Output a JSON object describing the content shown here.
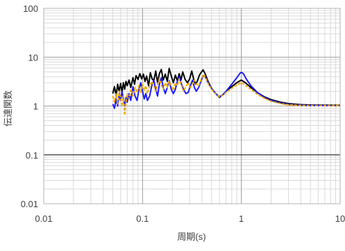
{
  "chart_data": {
    "type": "line",
    "title": "",
    "xlabel": "周期(s)",
    "ylabel": "伝達関数",
    "x_scale": "log",
    "y_scale": "log",
    "xlim": [
      0.01,
      10
    ],
    "ylim": [
      0.01,
      100
    ],
    "x_ticks": [
      {
        "value": 0.01,
        "label": "0.01"
      },
      {
        "value": 0.1,
        "label": "0.1"
      },
      {
        "value": 1,
        "label": "1"
      },
      {
        "value": 10,
        "label": "10"
      }
    ],
    "y_ticks": [
      {
        "value": 0.01,
        "label": "0.01"
      },
      {
        "value": 0.1,
        "label": "0.1"
      },
      {
        "value": 1,
        "label": "1"
      },
      {
        "value": 10,
        "label": "10"
      },
      {
        "value": 100,
        "label": "100"
      }
    ],
    "grid": true,
    "legend": false,
    "series": [
      {
        "color": "#000000",
        "style": "solid",
        "points": [
          [
            0.05,
            1.8
          ],
          [
            0.052,
            2.5
          ],
          [
            0.054,
            1.6
          ],
          [
            0.056,
            2.8
          ],
          [
            0.058,
            2.0
          ],
          [
            0.06,
            2.9
          ],
          [
            0.062,
            1.9
          ],
          [
            0.064,
            3.0
          ],
          [
            0.066,
            2.2
          ],
          [
            0.068,
            3.2
          ],
          [
            0.07,
            2.6
          ],
          [
            0.073,
            3.4
          ],
          [
            0.076,
            2.4
          ],
          [
            0.08,
            3.8
          ],
          [
            0.083,
            2.8
          ],
          [
            0.086,
            4.2
          ],
          [
            0.09,
            3.5
          ],
          [
            0.094,
            4.6
          ],
          [
            0.098,
            3.6
          ],
          [
            0.102,
            4.5
          ],
          [
            0.106,
            3.2
          ],
          [
            0.11,
            4.1
          ],
          [
            0.115,
            2.6
          ],
          [
            0.12,
            4.8
          ],
          [
            0.125,
            3.6
          ],
          [
            0.13,
            3.3
          ],
          [
            0.136,
            5.2
          ],
          [
            0.142,
            3.0
          ],
          [
            0.148,
            4.6
          ],
          [
            0.155,
            5.6
          ],
          [
            0.162,
            3.4
          ],
          [
            0.17,
            4.5
          ],
          [
            0.178,
            3.2
          ],
          [
            0.186,
            5.9
          ],
          [
            0.195,
            4.2
          ],
          [
            0.205,
            3.0
          ],
          [
            0.215,
            4.3
          ],
          [
            0.225,
            3.3
          ],
          [
            0.235,
            4.6
          ],
          [
            0.245,
            3.4
          ],
          [
            0.255,
            5.0
          ],
          [
            0.27,
            3.5
          ],
          [
            0.285,
            3.0
          ],
          [
            0.3,
            3.6
          ],
          [
            0.315,
            5.2
          ],
          [
            0.33,
            3.5
          ],
          [
            0.345,
            2.8
          ],
          [
            0.36,
            3.3
          ],
          [
            0.375,
            4.2
          ],
          [
            0.39,
            4.8
          ],
          [
            0.41,
            5.5
          ],
          [
            0.43,
            4.6
          ],
          [
            0.46,
            3.2
          ],
          [
            0.5,
            2.3
          ],
          [
            0.55,
            1.8
          ],
          [
            0.6,
            1.5
          ],
          [
            0.65,
            1.7
          ],
          [
            0.7,
            2.0
          ],
          [
            0.8,
            2.5
          ],
          [
            0.9,
            3.0
          ],
          [
            1.0,
            3.4
          ],
          [
            1.1,
            3.0
          ],
          [
            1.25,
            2.4
          ],
          [
            1.45,
            1.9
          ],
          [
            1.7,
            1.55
          ],
          [
            2.0,
            1.35
          ],
          [
            2.5,
            1.2
          ],
          [
            3.0,
            1.12
          ],
          [
            4.0,
            1.07
          ],
          [
            5.0,
            1.05
          ],
          [
            7.0,
            1.04
          ],
          [
            10.0,
            1.04
          ]
        ]
      },
      {
        "color": "#1a1aff",
        "style": "solid",
        "points": [
          [
            0.05,
            1.1
          ],
          [
            0.052,
            0.9
          ],
          [
            0.054,
            1.4
          ],
          [
            0.056,
            1.0
          ],
          [
            0.058,
            1.8
          ],
          [
            0.06,
            1.3
          ],
          [
            0.062,
            2.0
          ],
          [
            0.064,
            1.4
          ],
          [
            0.066,
            1.0
          ],
          [
            0.068,
            1.5
          ],
          [
            0.07,
            1.2
          ],
          [
            0.073,
            1.8
          ],
          [
            0.076,
            1.3
          ],
          [
            0.08,
            2.5
          ],
          [
            0.084,
            1.6
          ],
          [
            0.088,
            1.3
          ],
          [
            0.092,
            2.2
          ],
          [
            0.096,
            3.0
          ],
          [
            0.1,
            2.0
          ],
          [
            0.104,
            1.4
          ],
          [
            0.108,
            1.8
          ],
          [
            0.112,
            1.3
          ],
          [
            0.118,
            1.6
          ],
          [
            0.124,
            2.6
          ],
          [
            0.13,
            3.4
          ],
          [
            0.136,
            2.2
          ],
          [
            0.142,
            1.6
          ],
          [
            0.148,
            2.8
          ],
          [
            0.155,
            3.8
          ],
          [
            0.162,
            2.4
          ],
          [
            0.17,
            1.8
          ],
          [
            0.178,
            2.4
          ],
          [
            0.186,
            3.3
          ],
          [
            0.195,
            2.2
          ],
          [
            0.205,
            1.8
          ],
          [
            0.215,
            2.2
          ],
          [
            0.225,
            3.2
          ],
          [
            0.235,
            4.0
          ],
          [
            0.245,
            3.0
          ],
          [
            0.26,
            2.2
          ],
          [
            0.275,
            1.8
          ],
          [
            0.29,
            1.9
          ],
          [
            0.305,
            2.6
          ],
          [
            0.32,
            3.4
          ],
          [
            0.335,
            2.4
          ],
          [
            0.35,
            2.0
          ],
          [
            0.37,
            2.4
          ],
          [
            0.39,
            3.2
          ],
          [
            0.41,
            4.2
          ],
          [
            0.43,
            4.0
          ],
          [
            0.46,
            3.0
          ],
          [
            0.5,
            2.3
          ],
          [
            0.55,
            1.8
          ],
          [
            0.6,
            1.55
          ],
          [
            0.65,
            1.7
          ],
          [
            0.7,
            2.0
          ],
          [
            0.8,
            2.8
          ],
          [
            0.9,
            3.8
          ],
          [
            0.97,
            4.7
          ],
          [
            1.0,
            4.9
          ],
          [
            1.05,
            4.6
          ],
          [
            1.12,
            3.6
          ],
          [
            1.25,
            2.6
          ],
          [
            1.45,
            1.9
          ],
          [
            1.7,
            1.5
          ],
          [
            2.0,
            1.3
          ],
          [
            2.5,
            1.15
          ],
          [
            3.0,
            1.08
          ],
          [
            4.0,
            1.04
          ],
          [
            5.0,
            1.02
          ],
          [
            7.0,
            1.02
          ],
          [
            10.0,
            1.03
          ]
        ]
      },
      {
        "color": "#f0a800",
        "style": "dashed",
        "points": [
          [
            0.05,
            1.6
          ],
          [
            0.052,
            1.2
          ],
          [
            0.054,
            1.8
          ],
          [
            0.056,
            1.1
          ],
          [
            0.058,
            2.0
          ],
          [
            0.06,
            1.5
          ],
          [
            0.062,
            1.0
          ],
          [
            0.064,
            1.6
          ],
          [
            0.066,
            0.65
          ],
          [
            0.068,
            1.2
          ],
          [
            0.07,
            1.8
          ],
          [
            0.073,
            1.4
          ],
          [
            0.076,
            2.2
          ],
          [
            0.08,
            1.6
          ],
          [
            0.084,
            2.4
          ],
          [
            0.088,
            1.9
          ],
          [
            0.092,
            2.6
          ],
          [
            0.096,
            1.9
          ],
          [
            0.1,
            2.8
          ],
          [
            0.104,
            2.1
          ],
          [
            0.108,
            2.6
          ],
          [
            0.112,
            1.8
          ],
          [
            0.118,
            2.5
          ],
          [
            0.124,
            3.2
          ],
          [
            0.13,
            2.6
          ],
          [
            0.136,
            2.0
          ],
          [
            0.142,
            2.8
          ],
          [
            0.148,
            3.6
          ],
          [
            0.155,
            2.7
          ],
          [
            0.162,
            2.2
          ],
          [
            0.17,
            3.0
          ],
          [
            0.178,
            2.4
          ],
          [
            0.186,
            3.2
          ],
          [
            0.195,
            2.6
          ],
          [
            0.205,
            2.1
          ],
          [
            0.215,
            3.0
          ],
          [
            0.225,
            2.6
          ],
          [
            0.235,
            3.6
          ],
          [
            0.245,
            2.8
          ],
          [
            0.26,
            2.0
          ],
          [
            0.275,
            2.5
          ],
          [
            0.29,
            3.0
          ],
          [
            0.305,
            2.4
          ],
          [
            0.32,
            2.8
          ],
          [
            0.335,
            3.4
          ],
          [
            0.35,
            2.8
          ],
          [
            0.37,
            2.6
          ],
          [
            0.39,
            3.4
          ],
          [
            0.41,
            4.4
          ],
          [
            0.43,
            4.0
          ],
          [
            0.46,
            2.9
          ],
          [
            0.5,
            2.2
          ],
          [
            0.55,
            1.75
          ],
          [
            0.6,
            1.55
          ],
          [
            0.65,
            1.65
          ],
          [
            0.7,
            1.9
          ],
          [
            0.8,
            2.3
          ],
          [
            0.9,
            2.7
          ],
          [
            1.0,
            3.0
          ],
          [
            1.1,
            2.7
          ],
          [
            1.25,
            2.2
          ],
          [
            1.45,
            1.75
          ],
          [
            1.7,
            1.45
          ],
          [
            2.0,
            1.25
          ],
          [
            2.5,
            1.12
          ],
          [
            3.0,
            1.06
          ],
          [
            4.0,
            1.03
          ],
          [
            5.0,
            1.02
          ],
          [
            7.0,
            1.02
          ],
          [
            10.0,
            1.03
          ]
        ]
      }
    ]
  }
}
